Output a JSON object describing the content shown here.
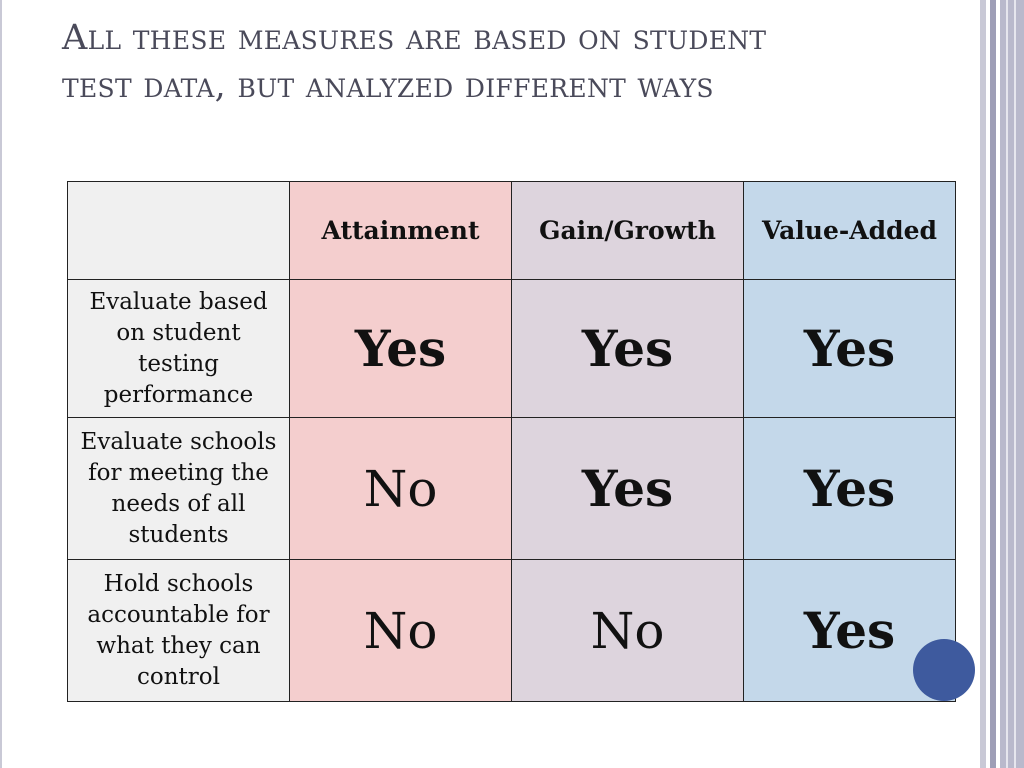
{
  "slide": {
    "title": "All these measures are based on student test data, but analyzed different ways"
  },
  "table": {
    "corner": "",
    "columns": [
      "Attainment",
      "Gain/Growth",
      "Value-Added"
    ],
    "rows": [
      {
        "label": "Evaluate based on student testing performance",
        "cells": [
          "Yes",
          "Yes",
          "Yes"
        ]
      },
      {
        "label": "Evaluate schools for meeting the needs of all students",
        "cells": [
          "No",
          "Yes",
          "Yes"
        ]
      },
      {
        "label": "Hold schools accountable for what they can control",
        "cells": [
          "No",
          "No",
          "Yes"
        ]
      }
    ]
  },
  "colors": {
    "attainment_bg": "#f4cece",
    "gain_bg": "#ddd4dd",
    "value_added_bg": "#c4d8ea",
    "label_bg": "#f0f0f0",
    "accent_circle": "#3e5a9e"
  }
}
